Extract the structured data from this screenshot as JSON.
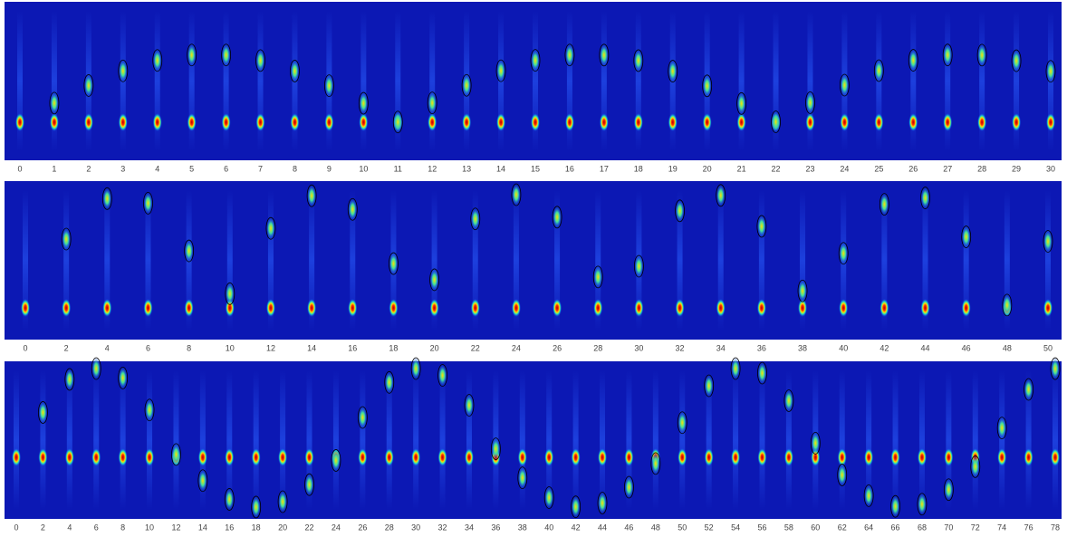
{
  "panels": [
    {
      "ticks": [
        0,
        1,
        2,
        3,
        4,
        5,
        6,
        7,
        8,
        9,
        10,
        11,
        12,
        13,
        14,
        15,
        16,
        17,
        18,
        19,
        20,
        21,
        22,
        23,
        24,
        25,
        26,
        27,
        28,
        29,
        30
      ]
    },
    {
      "ticks": [
        0,
        2,
        4,
        6,
        8,
        10,
        12,
        14,
        16,
        18,
        20,
        22,
        24,
        26,
        28,
        30,
        32,
        34,
        36,
        38,
        40,
        42,
        44,
        46,
        48,
        50
      ]
    },
    {
      "ticks": [
        0,
        2,
        4,
        6,
        8,
        10,
        12,
        14,
        16,
        18,
        20,
        22,
        24,
        26,
        28,
        30,
        32,
        34,
        36,
        38,
        40,
        42,
        44,
        46,
        48,
        50,
        52,
        54,
        56,
        58,
        60,
        62,
        64,
        66,
        68,
        70,
        72,
        74,
        76,
        78
      ]
    }
  ]
}
